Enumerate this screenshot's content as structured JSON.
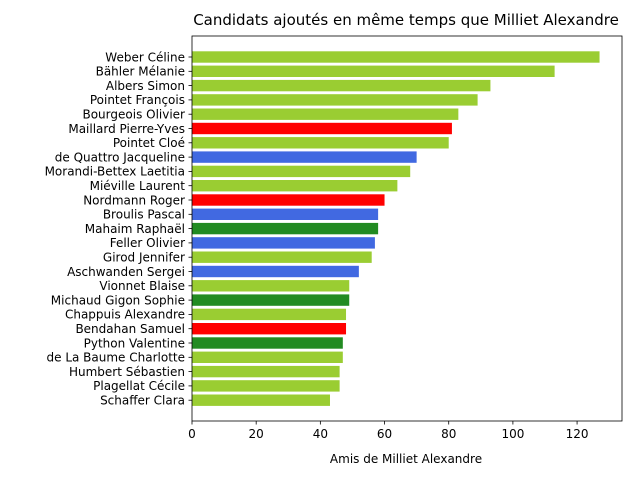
{
  "chart_data": {
    "type": "bar",
    "orientation": "horizontal",
    "title": "Candidats ajoutés en même temps que Milliet Alexandre",
    "xlabel": "Amis de Milliet Alexandre",
    "ylabel": "",
    "xlim": [
      0,
      134
    ],
    "xticks": [
      0,
      20,
      40,
      60,
      80,
      100,
      120
    ],
    "grid": false,
    "categories": [
      "Weber Céline",
      "Bähler Mélanie",
      "Albers Simon",
      "Pointet François",
      "Bourgeois Olivier",
      "Maillard Pierre-Yves",
      "Pointet Cloé",
      "de Quattro Jacqueline",
      "Morandi-Bettex Laetitia",
      "Miéville Laurent",
      "Nordmann Roger",
      "Broulis Pascal",
      "Mahaim Raphaël",
      "Feller Olivier",
      "Girod Jennifer",
      "Aschwanden Sergei",
      "Vionnet Blaise",
      "Michaud Gigon Sophie",
      "Chappuis Alexandre",
      "Bendahan Samuel",
      "Python Valentine",
      "de La Baume Charlotte",
      "Humbert Sébastien",
      "Plagellat Cécile",
      "Schaffer Clara"
    ],
    "values": [
      127,
      113,
      93,
      89,
      83,
      81,
      80,
      70,
      68,
      64,
      60,
      58,
      58,
      57,
      56,
      52,
      49,
      49,
      48,
      48,
      47,
      47,
      46,
      46,
      43
    ],
    "colors": [
      "#9acd32",
      "#9acd32",
      "#9acd32",
      "#9acd32",
      "#9acd32",
      "#ff0000",
      "#9acd32",
      "#4169e1",
      "#9acd32",
      "#9acd32",
      "#ff0000",
      "#4169e1",
      "#228b22",
      "#4169e1",
      "#9acd32",
      "#4169e1",
      "#9acd32",
      "#228b22",
      "#9acd32",
      "#ff0000",
      "#228b22",
      "#9acd32",
      "#9acd32",
      "#9acd32",
      "#9acd32"
    ]
  }
}
